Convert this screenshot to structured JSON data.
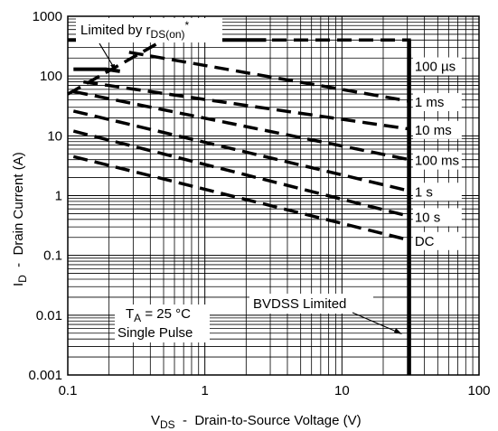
{
  "chart_data": {
    "type": "line",
    "scale": {
      "x": "log",
      "y": "log"
    },
    "xlim": [
      0.1,
      100
    ],
    "ylim": [
      0.001,
      1000
    ],
    "grid": true,
    "x_ticks": [
      "0.1",
      "1",
      "10",
      "100"
    ],
    "y_ticks": [
      "1000",
      "100",
      "10",
      "1",
      "0.1",
      "0.01",
      "0.001"
    ],
    "xlabel": {
      "main": "V",
      "sub": "DS",
      "rest": "  -  Drain-to-Source Voltage (V)"
    },
    "ylabel": {
      "main": "I",
      "sub": "D",
      "rest": "  -  Drain Current (A)"
    },
    "series": [
      {
        "name": "100 µs",
        "points": [
          [
            0.5,
            400
          ],
          [
            31,
            400
          ],
          [
            31,
            150
          ]
        ]
      },
      {
        "name": "1 ms",
        "points": [
          [
            0.28,
            250
          ],
          [
            31,
            38
          ]
        ]
      },
      {
        "name": "10 ms",
        "points": [
          [
            0.13,
            80
          ],
          [
            31,
            13
          ]
        ]
      },
      {
        "name": "100 ms",
        "points": [
          [
            0.11,
            55
          ],
          [
            31,
            4
          ]
        ]
      },
      {
        "name": "1 s",
        "points": [
          [
            0.11,
            26
          ],
          [
            31,
            1.2
          ]
        ]
      },
      {
        "name": "10 s",
        "points": [
          [
            0.11,
            12
          ],
          [
            31,
            0.45
          ]
        ]
      },
      {
        "name": "DC",
        "points": [
          [
            0.11,
            4.5
          ],
          [
            31,
            0.18
          ]
        ]
      }
    ],
    "boundaries": {
      "rds_on_limit_segments": [
        {
          "points": [
            [
              0.1,
              400
            ],
            [
              2.8,
              400
            ]
          ]
        },
        {
          "points": [
            [
              0.11,
              130
            ],
            [
              0.19,
              130
            ],
            [
              0.24,
              120
            ]
          ]
        },
        {
          "points": [
            [
              0.1,
              50
            ],
            [
              0.5,
              400
            ]
          ]
        }
      ],
      "bvdss_limit_vds": 31,
      "bvdss_limit_range": [
        0.001,
        400
      ]
    },
    "annotations": {
      "limited_by": {
        "main": "Limited by r",
        "sub": "DS(on)",
        "sup": "*"
      },
      "conditions": {
        "line1_main": "T",
        "line1_sub": "A",
        "line1_rest": " = 25 °C",
        "line2": "Single Pulse"
      },
      "bvdss": "BVDSS Limited"
    }
  }
}
